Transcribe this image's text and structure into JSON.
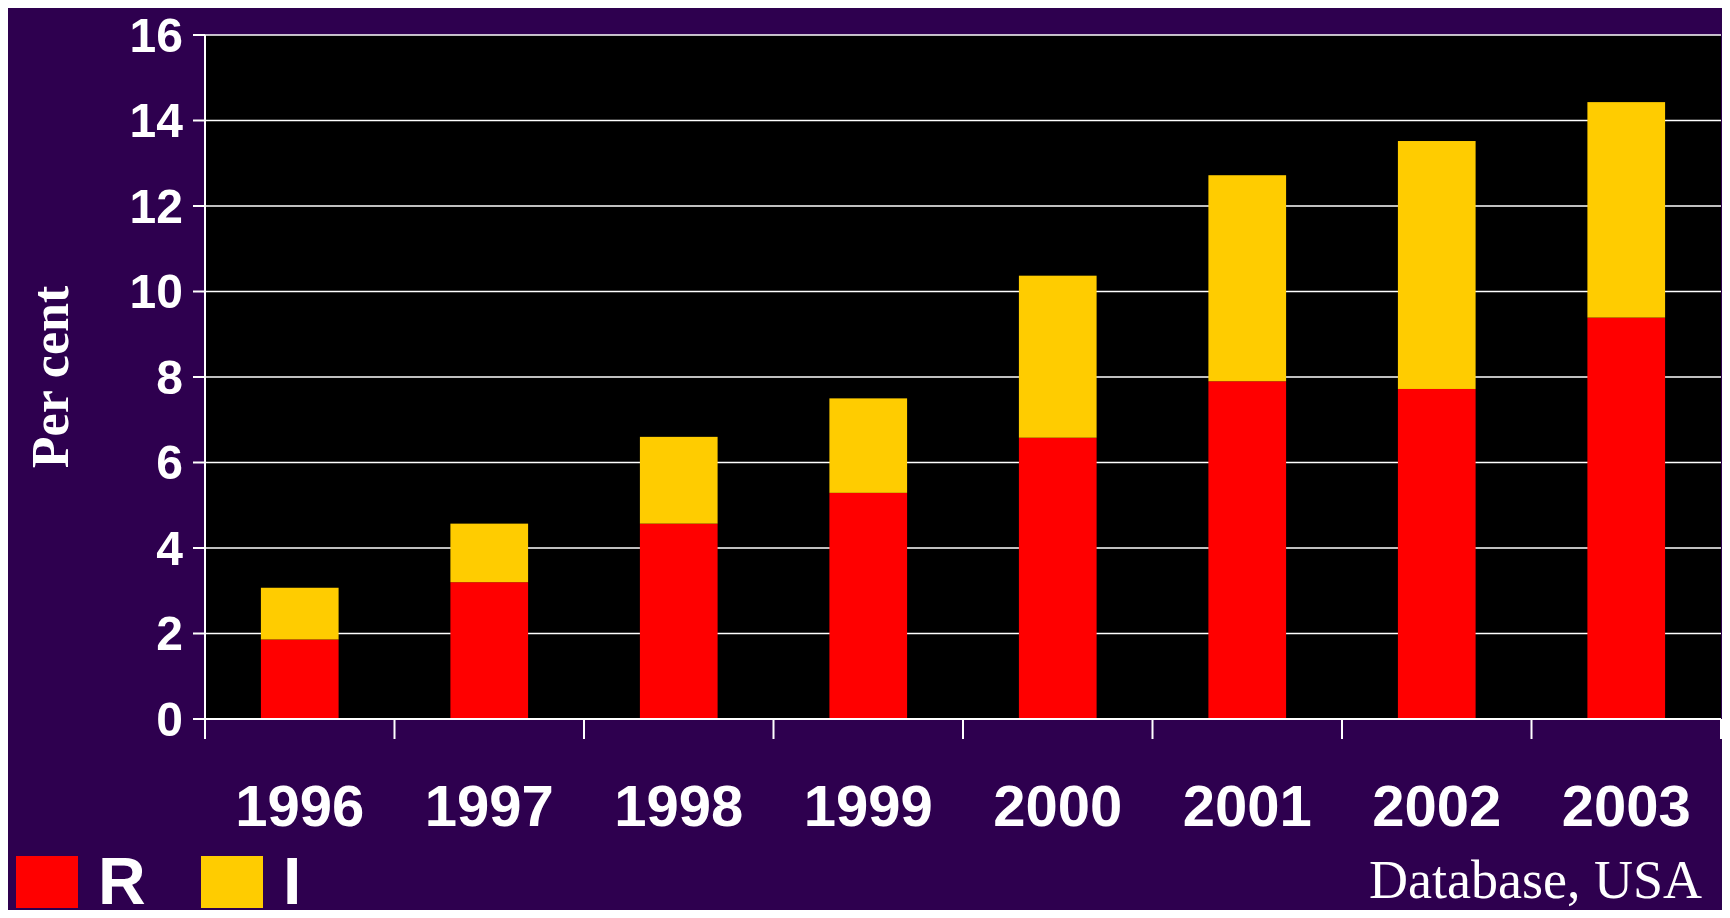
{
  "chart_data": {
    "type": "bar",
    "stacked": true,
    "ylabel": "Per cent",
    "categories": [
      "1996",
      "1997",
      "1998",
      "1999",
      "2000",
      "2001",
      "2002",
      "2003"
    ],
    "series": [
      {
        "name": "R",
        "color": "#ff0000",
        "values": [
          1.86,
          3.2,
          4.57,
          5.29,
          6.58,
          7.9,
          7.72,
          9.39
        ]
      },
      {
        "name": "I",
        "color": "#ffcc00",
        "values": [
          1.21,
          1.37,
          2.03,
          2.21,
          3.79,
          4.82,
          5.8,
          5.04
        ]
      }
    ],
    "ylim": [
      0,
      16
    ],
    "yticks": [
      0,
      2,
      4,
      6,
      8,
      10,
      12,
      14,
      16
    ],
    "grid": "y",
    "legend": "bottom left",
    "annotations": [
      "Database, USA"
    ]
  }
}
